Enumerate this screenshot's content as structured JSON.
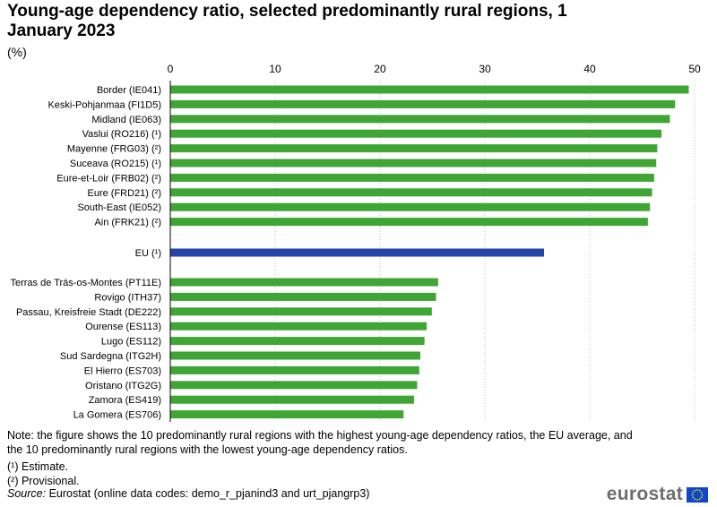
{
  "title": "Young-age dependency ratio, selected predominantly rural regions, 1 January 2023",
  "unit": "(%)",
  "colors": {
    "regions": "#3fa535",
    "eu": "#2644a7",
    "grid": "#bfbfbf",
    "text": "#000000"
  },
  "chart_data": {
    "type": "bar",
    "orientation": "horizontal",
    "xlim": [
      0,
      50
    ],
    "xticks": [
      0,
      10,
      20,
      30,
      40,
      50
    ],
    "grid": true,
    "categories": [
      "Border (IE041)",
      "Keski-Pohjanmaa (FI1D5)",
      "Midland (IE063)",
      "Vaslui (RO216) (¹)",
      "Mayenne (FRG03) (²)",
      "Suceava (RO215) (¹)",
      "Eure-et-Loir (FRB02) (²)",
      "Eure (FRD21) (²)",
      "South-East (IE052)",
      "Ain (FRK21) (²)",
      "EU (¹)",
      "Terras de Trás-os-Montes (PT11E)",
      "Rovigo (ITH37)",
      "Passau, Kreisfreie Stadt (DE222)",
      "Ourense (ES113)",
      "Lugo (ES112)",
      "Sud Sardegna (ITG2H)",
      "El Hierro (ES703)",
      "Oristano (ITG2G)",
      "Zamora (ES419)",
      "La Gomera (ES706)"
    ],
    "values": [
      49.4,
      48.1,
      47.6,
      46.8,
      46.4,
      46.3,
      46.1,
      45.9,
      45.7,
      45.5,
      35.6,
      25.5,
      25.3,
      24.9,
      24.4,
      24.2,
      23.8,
      23.7,
      23.5,
      23.2,
      22.2
    ],
    "groups": [
      "high",
      "high",
      "high",
      "high",
      "high",
      "high",
      "high",
      "high",
      "high",
      "high",
      "eu",
      "low",
      "low",
      "low",
      "low",
      "low",
      "low",
      "low",
      "low",
      "low",
      "low"
    ]
  },
  "notes": {
    "main": "Note: the figure shows the 10 predominantly rural regions with the highest young-age dependency ratios, the EU average, and the 10 predominantly rural regions with the lowest young-age dependency ratios.",
    "estimate": "(¹) Estimate.",
    "provisional": "(²) Provisional."
  },
  "source": {
    "label": "Source:",
    "text": " Eurostat (online data codes: demo_r_pjanind3 and urt_pjangrp3)"
  },
  "logo": {
    "text": "eurostat",
    "icon": "eu-flag-icon"
  }
}
